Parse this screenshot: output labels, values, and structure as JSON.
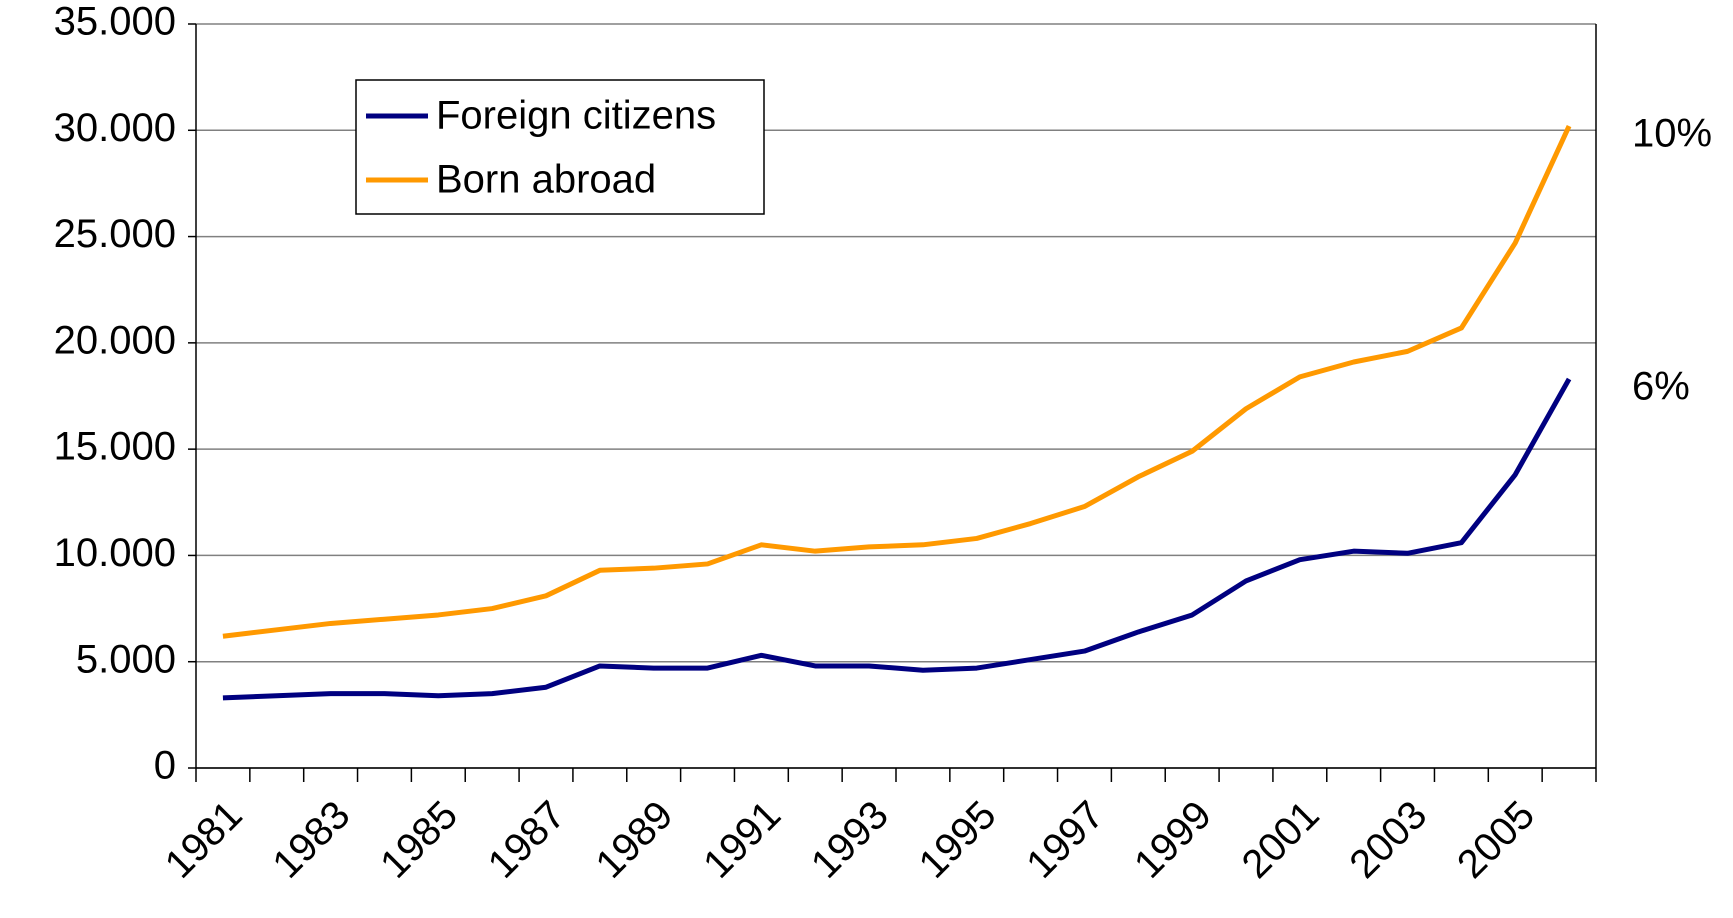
{
  "chart_data": {
    "type": "line",
    "categories": [
      "1981",
      null,
      "1983",
      null,
      "1985",
      null,
      "1987",
      null,
      "1989",
      null,
      "1991",
      null,
      "1993",
      null,
      "1995",
      null,
      "1997",
      null,
      "1999",
      null,
      "2001",
      null,
      "2003",
      null,
      "2005",
      null
    ],
    "series": [
      {
        "name": "Foreign citizens",
        "color": "#000080",
        "values": [
          3300,
          3400,
          3500,
          3500,
          3400,
          3500,
          3800,
          4800,
          4700,
          4700,
          5300,
          4800,
          4800,
          4600,
          4700,
          5100,
          5500,
          6400,
          7200,
          8800,
          9800,
          10200,
          10100,
          10600,
          13800,
          18300
        ]
      },
      {
        "name": "Born abroad",
        "color": "#ff9900",
        "values": [
          6200,
          6500,
          6800,
          7000,
          7200,
          7500,
          8100,
          9300,
          9400,
          9600,
          10500,
          10200,
          10400,
          10500,
          10800,
          11500,
          12300,
          13700,
          14900,
          16900,
          18400,
          19100,
          19600,
          20700,
          24700,
          30200
        ]
      }
    ],
    "annotations": [
      {
        "text": "10%",
        "series": 1
      },
      {
        "text": "6%",
        "series": 0
      }
    ],
    "ylim": [
      0,
      35000
    ],
    "yticks": [
      0,
      {
        "value": 5000,
        "label": "5.000"
      },
      {
        "value": 10000,
        "label": "10.000"
      },
      {
        "value": 15000,
        "label": "15.000"
      },
      {
        "value": 20000,
        "label": "20.000"
      },
      {
        "value": 25000,
        "label": "25.000"
      },
      {
        "value": 30000,
        "label": "30.000"
      },
      {
        "value": 35000,
        "label": "35.000"
      }
    ],
    "grid": true,
    "legend": "top-left"
  }
}
